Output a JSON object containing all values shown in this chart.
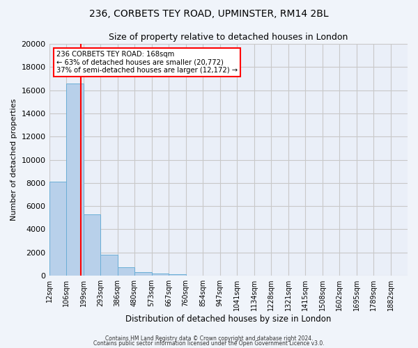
{
  "title_line1": "236, CORBETS TEY ROAD, UPMINSTER, RM14 2BL",
  "title_line2": "Size of property relative to detached houses in London",
  "xlabel": "Distribution of detached houses by size in London",
  "ylabel": "Number of detached properties",
  "bar_color": "#b8d0ea",
  "bar_edgecolor": "#6aaed6",
  "grid_color": "#c8c8c8",
  "background_color": "#f0f4fa",
  "plot_bg_color": "#eaeff8",
  "categories": [
    "12sqm",
    "106sqm",
    "199sqm",
    "293sqm",
    "386sqm",
    "480sqm",
    "573sqm",
    "667sqm",
    "760sqm",
    "854sqm",
    "947sqm",
    "1041sqm",
    "1134sqm",
    "1228sqm",
    "1321sqm",
    "1415sqm",
    "1508sqm",
    "1602sqm",
    "1695sqm",
    "1789sqm",
    "1882sqm"
  ],
  "bar_heights": [
    8100,
    16600,
    5300,
    1800,
    750,
    300,
    200,
    150,
    0,
    0,
    0,
    0,
    0,
    0,
    0,
    0,
    0,
    0,
    0,
    0,
    0
  ],
  "ylim": [
    0,
    20000
  ],
  "yticks": [
    0,
    2000,
    4000,
    6000,
    8000,
    10000,
    12000,
    14000,
    16000,
    18000,
    20000
  ],
  "red_line_x": 1.85,
  "annotation_line1": "236 CORBETS TEY ROAD: 168sqm",
  "annotation_line2": "← 63% of detached houses are smaller (20,772)",
  "annotation_line3": "37% of semi-detached houses are larger (12,172) →",
  "footer_line1": "Contains HM Land Registry data © Crown copyright and database right 2024.",
  "footer_line2": "Contains public sector information licensed under the Open Government Licence v3.0."
}
